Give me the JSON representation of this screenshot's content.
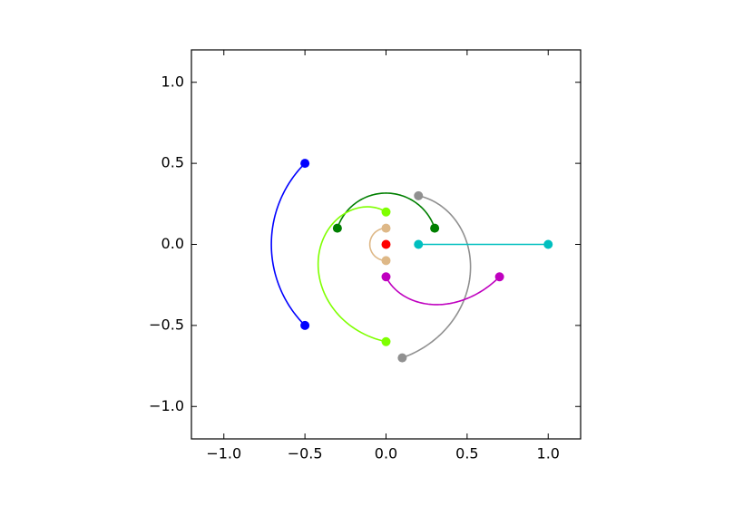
{
  "chart_data": {
    "type": "polar-arc",
    "xlim": [
      -1.2,
      1.2
    ],
    "ylim": [
      -1.2,
      1.2
    ],
    "xticks": [
      {
        "value": -1,
        "label": "−1.0"
      },
      {
        "value": -0.5,
        "label": "−0.5"
      },
      {
        "value": 0,
        "label": "0.0"
      },
      {
        "value": 0.5,
        "label": "0.5"
      },
      {
        "value": 1,
        "label": "1.0"
      }
    ],
    "yticks": [
      {
        "value": -1,
        "label": "−1.0"
      },
      {
        "value": -0.5,
        "label": "−0.5"
      },
      {
        "value": 0,
        "label": "0.0"
      },
      {
        "value": 0.5,
        "label": "0.5"
      },
      {
        "value": 1,
        "label": "1.0"
      }
    ],
    "series": [
      {
        "color": "#0000ff",
        "x": [
          -0.5,
          -0.5
        ],
        "y": [
          0.5,
          -0.5
        ]
      },
      {
        "color": "#007f00",
        "x": [
          -0.3,
          0.3
        ],
        "y": [
          0.1,
          0.1
        ]
      },
      {
        "color": "#7fff00",
        "x": [
          0,
          0
        ],
        "y": [
          0.2,
          -0.6
        ]
      },
      {
        "color": "#deb887",
        "x": [
          0,
          0
        ],
        "y": [
          0.1,
          -0.1
        ]
      },
      {
        "color": "#909090",
        "x": [
          0.2,
          0.1
        ],
        "y": [
          0.3,
          -0.7
        ]
      },
      {
        "color": "#00bfbf",
        "x": [
          0.2,
          1
        ],
        "y": [
          0,
          0
        ]
      },
      {
        "color": "#bf00bf",
        "x": [
          0,
          0.7
        ],
        "y": [
          -0.2,
          -0.2
        ]
      },
      {
        "color": "#ff0000",
        "x": [
          0
        ],
        "y": [
          0
        ]
      }
    ]
  }
}
